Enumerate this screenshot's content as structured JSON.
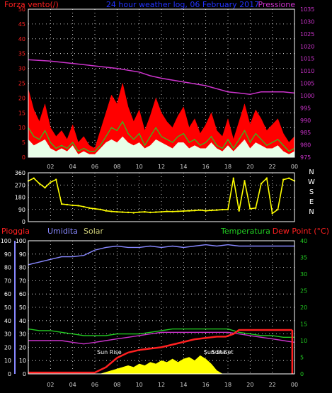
{
  "colors": {
    "background": "#000000",
    "grid": "#ffffff",
    "wind_label": "#ff2020",
    "pressure": "#cc33cc",
    "subtitle": "#2233ff",
    "humidity_axis": "#8888ff",
    "temperature": "#22cc22",
    "solar": "#ffff00",
    "rain": "#ff2020",
    "direction": "#ffff00",
    "gust_fill": "#ff0000",
    "wind_fill": "#ffffff"
  },
  "chart_data": [
    {
      "id": "wind-pressure",
      "type": "area",
      "title": "24 hour weather log, 06 February 2017",
      "left_label": "Forza vento(/)",
      "right_label": "Pressione",
      "x_ticks": [
        "02",
        "04",
        "06",
        "08",
        "10",
        "12",
        "14",
        "16",
        "18",
        "20",
        "22",
        "00"
      ],
      "y_left": {
        "ticks": [
          0,
          5,
          10,
          15,
          20,
          25,
          30,
          35,
          40,
          45,
          50
        ],
        "range": [
          0,
          50
        ]
      },
      "y_right": {
        "ticks": [
          975,
          980,
          985,
          990,
          995,
          1000,
          1005,
          1010,
          1015,
          1020,
          1025,
          1030,
          1035
        ],
        "range": [
          975,
          1035
        ]
      },
      "grid": true,
      "series": [
        {
          "name": "Pressione",
          "axis": "right",
          "x": [
            0.0,
            2.0,
            4.0,
            6.0,
            8.0,
            10.0,
            11.0,
            12.0,
            14.0,
            16.0,
            18.0,
            19.0,
            20.0,
            21.0,
            22.0,
            23.0,
            24.0
          ],
          "values": [
            1014.5,
            1014.0,
            1013.0,
            1012.0,
            1011.0,
            1009.5,
            1008.0,
            1007.0,
            1005.5,
            1004.0,
            1001.5,
            1001.0,
            1000.5,
            1001.5,
            1001.5,
            1001.5,
            1001.0
          ]
        },
        {
          "x": [
            0.0,
            0.5,
            1.0,
            1.5,
            2.0,
            2.5,
            3.0,
            3.5,
            4.0,
            4.5,
            5.0,
            5.5,
            6.0,
            6.5,
            7.0,
            7.5,
            8.0,
            8.5,
            9.0,
            9.5,
            10.0,
            10.5,
            11.0,
            11.5,
            12.0,
            12.5,
            13.0,
            13.5,
            14.0,
            14.5,
            15.0,
            15.5,
            16.0,
            16.5,
            17.0,
            17.5,
            18.0,
            18.5,
            19.0,
            19.5,
            20.0,
            20.5,
            21.0,
            21.5,
            22.0,
            22.5,
            23.0,
            23.5,
            24.0
          ],
          "values": [
            23,
            16,
            12,
            18,
            10,
            7,
            9,
            6,
            11,
            5,
            7,
            4,
            3,
            9,
            15,
            21,
            18,
            25,
            17,
            12,
            16,
            9,
            14,
            20,
            15,
            12,
            10,
            14,
            17,
            10,
            13,
            8,
            11,
            15,
            9,
            7,
            13,
            6,
            12,
            18,
            11,
            16,
            13,
            9,
            11,
            13,
            8,
            5,
            7
          ]
        },
        {
          "x": [
            0.0,
            0.5,
            1.0,
            1.5,
            2.0,
            2.5,
            3.0,
            3.5,
            4.0,
            4.5,
            5.0,
            5.5,
            6.0,
            6.5,
            7.0,
            7.5,
            8.0,
            8.5,
            9.0,
            9.5,
            10.0,
            10.5,
            11.0,
            11.5,
            12.0,
            12.5,
            13.0,
            13.5,
            14.0,
            14.5,
            15.0,
            15.5,
            16.0,
            16.5,
            17.0,
            17.5,
            18.0,
            18.5,
            19.0,
            19.5,
            20.0,
            20.5,
            21.0,
            21.5,
            22.0,
            22.5,
            23.0,
            23.5,
            24.0
          ],
          "values": [
            10,
            7,
            6,
            9,
            5,
            3,
            4,
            3,
            5,
            2,
            3,
            2,
            2,
            4,
            7,
            10,
            9,
            12,
            8,
            6,
            8,
            4,
            7,
            10,
            7,
            6,
            5,
            7,
            8,
            5,
            6,
            4,
            5,
            7,
            4,
            3,
            6,
            3,
            6,
            9,
            5,
            8,
            6,
            4,
            5,
            6,
            4,
            2,
            3
          ]
        },
        {
          "x": [
            0.0,
            0.5,
            1.0,
            1.5,
            2.0,
            2.5,
            3.0,
            3.5,
            4.0,
            4.5,
            5.0,
            5.5,
            6.0,
            6.5,
            7.0,
            7.5,
            8.0,
            8.5,
            9.0,
            9.5,
            10.0,
            10.5,
            11.0,
            11.5,
            12.0,
            12.5,
            13.0,
            13.5,
            14.0,
            14.5,
            15.0,
            15.5,
            16.0,
            16.5,
            17.0,
            17.5,
            18.0,
            18.5,
            19.0,
            19.5,
            20.0,
            20.5,
            21.0,
            21.5,
            22.0,
            22.5,
            23.0,
            23.5,
            24.0
          ],
          "values": [
            6,
            4,
            5,
            6,
            3,
            2,
            3,
            2,
            4,
            1,
            2,
            1,
            1,
            3,
            5,
            6,
            5,
            7,
            5,
            4,
            5,
            3,
            4,
            6,
            5,
            4,
            3,
            5,
            5,
            3,
            4,
            3,
            3,
            5,
            3,
            2,
            4,
            2,
            4,
            6,
            3,
            5,
            4,
            3,
            3,
            4,
            2,
            1,
            2
          ]
        }
      ]
    },
    {
      "id": "wind-direction",
      "type": "scatter",
      "x_ticks": [
        "02",
        "04",
        "06",
        "08",
        "10",
        "12",
        "14",
        "16",
        "18",
        "20",
        "22",
        "00"
      ],
      "y_ticks": [
        0,
        90,
        180,
        270,
        360
      ],
      "y_range": [
        0,
        360
      ],
      "right_labels": [
        "N",
        "W",
        "S",
        "E",
        "N"
      ],
      "grid": true,
      "series": [
        {
          "x": [
            0.0,
            0.5,
            1.0,
            1.5,
            2.0,
            2.5,
            3.0,
            3.5,
            4.0,
            4.5,
            5.0,
            5.5,
            6.0,
            6.5,
            7.0,
            7.5,
            8.0,
            8.5,
            9.0,
            9.5,
            10.0,
            10.5,
            11.0,
            11.5,
            12.0,
            12.5,
            13.0,
            13.5,
            14.0,
            14.5,
            15.0,
            15.5,
            16.0,
            16.5,
            17.0,
            17.5,
            18.0,
            18.5,
            19.0,
            19.5,
            20.0,
            20.5,
            21.0,
            21.5,
            22.0,
            22.5,
            23.0,
            23.5,
            24.0
          ],
          "values": [
            300,
            320,
            280,
            250,
            290,
            310,
            130,
            125,
            120,
            118,
            110,
            100,
            95,
            90,
            80,
            75,
            72,
            70,
            68,
            65,
            70,
            72,
            68,
            70,
            72,
            75,
            74,
            76,
            78,
            80,
            82,
            85,
            80,
            83,
            85,
            88,
            90,
            320,
            80,
            300,
            95,
            100,
            280,
            320,
            60,
            90,
            310,
            320,
            300
          ]
        }
      ]
    },
    {
      "id": "humidity-temp-rain",
      "type": "line",
      "left_labels": [
        "Pioggia",
        "Umidita",
        "Solar"
      ],
      "right_labels": [
        "Temperatura",
        "Dew Point (°C)"
      ],
      "x_ticks": [
        "02",
        "04",
        "06",
        "08",
        "10",
        "12",
        "14",
        "16",
        "18",
        "20",
        "22",
        "00"
      ],
      "y_rain": {
        "ticks": [
          0,
          10,
          20,
          30,
          40,
          50,
          60,
          70,
          80,
          90,
          100
        ],
        "range": [
          0,
          100
        ]
      },
      "y_humidity": {
        "ticks": [
          0,
          10,
          20,
          30,
          40,
          50,
          60,
          70,
          80,
          90,
          100
        ],
        "range": [
          0,
          100
        ]
      },
      "y_temp": {
        "ticks": [
          0,
          5,
          10,
          15,
          20,
          25,
          30,
          35,
          40
        ],
        "range": [
          0,
          40
        ]
      },
      "annotations": [
        {
          "text": "Sun Rise",
          "x": 7.3
        },
        {
          "text": "Sun Set",
          "x": 17.5
        },
        {
          "text": "Sun Sta",
          "x": 16.8
        }
      ],
      "grid": true,
      "series": [
        {
          "name": "Umidita",
          "axis": "humidity",
          "x": [
            0.0,
            1.0,
            2.0,
            3.0,
            4.0,
            5.0,
            6.0,
            7.0,
            8.0,
            9.0,
            10.0,
            11.0,
            12.0,
            13.0,
            14.0,
            15.0,
            16.0,
            17.0,
            18.0,
            19.0,
            20.0,
            21.0,
            22.0,
            23.0,
            24.0
          ],
          "values": [
            82,
            84,
            86,
            88,
            88,
            89,
            93,
            95,
            96,
            95,
            95,
            96,
            95,
            96,
            95,
            96,
            97,
            96,
            97,
            96,
            96,
            96,
            96,
            96,
            96
          ]
        },
        {
          "name": "Temperatura",
          "axis": "temp",
          "x": [
            0.0,
            1.0,
            2.0,
            3.0,
            4.0,
            5.0,
            6.0,
            7.0,
            8.0,
            9.0,
            10.0,
            11.0,
            12.0,
            13.0,
            14.0,
            15.0,
            16.0,
            17.0,
            18.0,
            19.0,
            20.0,
            21.0,
            22.0,
            23.0,
            24.0
          ],
          "values": [
            13.5,
            13.0,
            13.0,
            12.5,
            12.0,
            11.5,
            11.5,
            11.5,
            12.0,
            12.0,
            12.0,
            12.5,
            13.0,
            13.5,
            13.5,
            13.5,
            13.5,
            13.5,
            13.5,
            12.5,
            12.0,
            11.5,
            11.5,
            11.0,
            11.0
          ]
        },
        {
          "name": "Dew Point (°C)",
          "axis": "temp",
          "x": [
            0.0,
            1.0,
            2.0,
            3.0,
            4.0,
            5.0,
            6.0,
            7.0,
            8.0,
            9.0,
            10.0,
            11.0,
            12.0,
            13.0,
            14.0,
            15.0,
            16.0,
            17.0,
            18.0,
            19.0,
            20.0,
            21.0,
            22.0,
            23.0,
            24.0
          ],
          "values": [
            10.0,
            10.0,
            10.0,
            10.0,
            9.5,
            9.0,
            9.5,
            10.0,
            10.5,
            11.0,
            11.5,
            12.0,
            12.5,
            12.5,
            12.5,
            12.5,
            12.5,
            12.5,
            12.5,
            12.0,
            11.5,
            11.0,
            10.5,
            10.0,
            9.5
          ]
        },
        {
          "name": "Solar",
          "axis": "temp",
          "x": [
            6.5,
            7.0,
            7.5,
            8.0,
            8.5,
            9.0,
            9.5,
            10.0,
            10.5,
            11.0,
            11.5,
            12.0,
            12.5,
            13.0,
            13.5,
            14.0,
            14.5,
            15.0,
            15.5,
            16.0,
            16.5,
            17.0,
            17.5
          ],
          "values": [
            0.0,
            0.5,
            1.0,
            1.5,
            2.0,
            2.5,
            2.0,
            3.0,
            2.5,
            3.5,
            3.0,
            4.0,
            3.5,
            4.5,
            3.5,
            4.5,
            5.0,
            4.0,
            5.5,
            4.5,
            3.0,
            1.0,
            0.0
          ]
        },
        {
          "name": "Pioggia",
          "axis": "rain",
          "x": [
            0.0,
            6.0,
            7.0,
            8.0,
            9.0,
            10.0,
            11.0,
            12.0,
            13.0,
            14.0,
            15.0,
            16.0,
            17.0,
            17.8,
            18.5,
            19.0,
            20.0,
            21.0,
            22.0,
            23.0,
            23.8
          ],
          "values": [
            1,
            1,
            5,
            12,
            16,
            18,
            19,
            20,
            22,
            24,
            26,
            27,
            28,
            28,
            30,
            33,
            33,
            33,
            33,
            33,
            33
          ]
        }
      ]
    }
  ]
}
